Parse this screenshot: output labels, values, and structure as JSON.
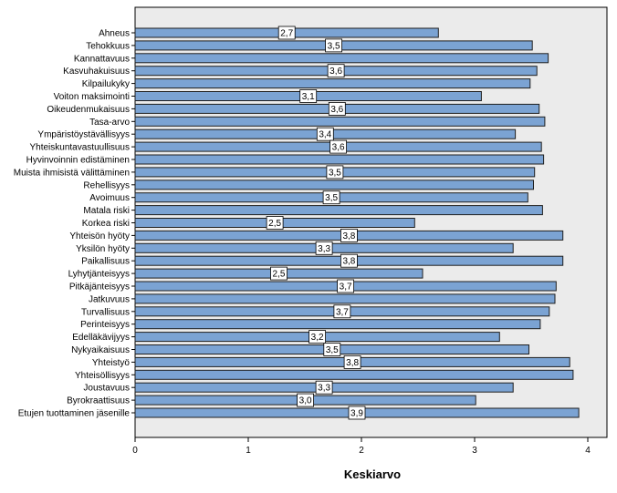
{
  "chart_data": {
    "type": "bar",
    "orientation": "horizontal",
    "xlabel": "Keskiarvo",
    "xlim": [
      0,
      4.15
    ],
    "xticks": [
      0,
      1,
      2,
      3,
      4
    ],
    "grid": false,
    "colors": {
      "bar_fill": "#7ba3d3",
      "bar_stroke": "#1f1f1f",
      "plot_background": "#ebebeb",
      "plot_border": "#000000"
    },
    "categories": [
      "Ahneus",
      "Tehokkuus",
      "Kannattavuus",
      "Kasvuhakuisuus",
      "Kilpailukyky",
      "Voiton maksimointi",
      "Oikeudenmukaisuus",
      "Tasa-arvo",
      "Ympäristöystävällisyys",
      "Yhteiskuntavastuullisuus",
      "Hyvinvoinnin edistäminen",
      "Muista ihmisistä välittäminen",
      "Rehellisyys",
      "Avoimuus",
      "Matala riski",
      "Korkea riski",
      "Yhteisön hyöty",
      "Yksilön hyöty",
      "Paikallisuus",
      "Lyhytjänteisyys",
      "Pitkäjänteisyys",
      "Jatkuvuus",
      "Turvallisuus",
      "Perinteisyys",
      "Edelläkävijyys",
      "Nykyaikaisuus",
      "Yhteistyö",
      "Yhteisöllisyys",
      "Joustavuus",
      "Byrokraattisuus",
      "Etujen tuottaminen jäsenille"
    ],
    "values": [
      2.68,
      3.51,
      3.65,
      3.55,
      3.49,
      3.06,
      3.57,
      3.62,
      3.36,
      3.59,
      3.61,
      3.53,
      3.52,
      3.47,
      3.6,
      2.47,
      3.78,
      3.34,
      3.78,
      2.54,
      3.72,
      3.71,
      3.66,
      3.58,
      3.22,
      3.48,
      3.84,
      3.87,
      3.34,
      3.01,
      3.92
    ],
    "data_labels": [
      "2,7",
      "3,5",
      "",
      "3,6",
      "",
      "3,1",
      "3,6",
      "",
      "3,4",
      "3,6",
      "",
      "3,5",
      "",
      "3,5",
      "",
      "2,5",
      "3,8",
      "3,3",
      "3,8",
      "2,5",
      "3,7",
      "",
      "3,7",
      "",
      "3,2",
      "3,5",
      "3,8",
      "",
      "3,3",
      "3,0",
      "3,9"
    ],
    "tick_labels": [
      "0",
      "1",
      "2",
      "3",
      "4"
    ]
  }
}
